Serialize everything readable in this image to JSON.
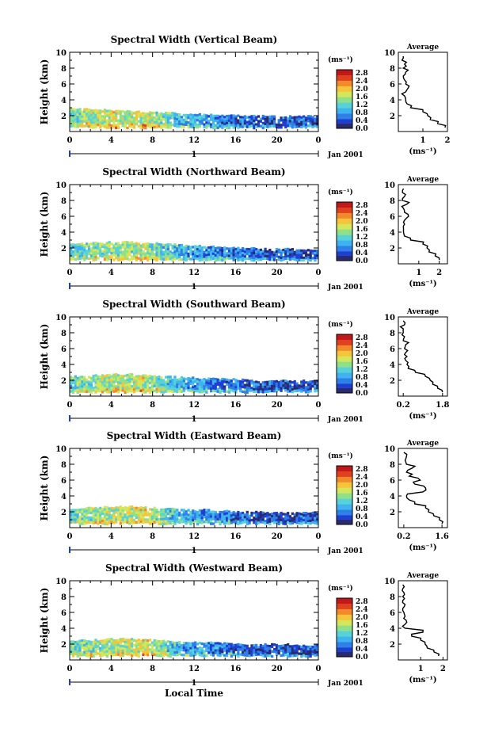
{
  "figure": {
    "xlabel": "Local Time",
    "date_label": "Jan 2001",
    "colorbar_unit": "(ms⁻¹)",
    "colorbar_ticks": [
      "2.8",
      "2.4",
      "2.0",
      "1.6",
      "1.2",
      "0.8",
      "0.4",
      "0.0"
    ],
    "colormap": [
      "#2a2a6e",
      "#1f3fd0",
      "#2f7fe8",
      "#3fb3f0",
      "#57d2d8",
      "#8ee08a",
      "#d4e65a",
      "#f5c43a",
      "#f08a2a",
      "#e0401e",
      "#c01818"
    ],
    "profile_xlabel": "(ms⁻¹)",
    "day_tick_label": "1"
  },
  "chart_data": [
    {
      "type": "heatmap",
      "title": "Spectral Width (Vertical Beam)",
      "xlabel": "",
      "ylabel": "Height (km)",
      "x_ticks": [
        "0",
        "4",
        "8",
        "12",
        "16",
        "20",
        "0"
      ],
      "y_ticks": [
        "2",
        "4",
        "6",
        "8",
        "10"
      ],
      "xlim": [
        0,
        24
      ],
      "ylim": [
        0,
        10
      ],
      "zlim": [
        0,
        3.0
      ],
      "top_km": [
        2.9,
        2.9,
        2.8,
        2.7,
        2.6,
        2.5,
        2.4,
        2.4,
        2.3,
        2.2,
        2.1,
        2.1,
        2.0,
        2.0,
        2.0,
        2.0,
        2.0,
        2.0
      ],
      "mean_width": [
        1.3,
        1.6,
        1.7,
        1.8,
        1.7,
        1.9,
        1.5,
        1.2,
        1.1,
        1.0,
        0.8,
        0.7,
        0.6,
        0.5,
        0.5,
        0.5,
        0.6,
        0.5
      ],
      "average_profile": {
        "title": "Average",
        "xlabel": "(ms⁻¹)",
        "x_ticks": [
          "1",
          "2"
        ],
        "xlim": [
          0,
          2
        ],
        "height_km": [
          0.5,
          1.0,
          1.5,
          2.0,
          2.5,
          3.0,
          3.5,
          4.0,
          4.5,
          5.0,
          5.5,
          6.0,
          6.5,
          7.0,
          7.5,
          8.0,
          8.5,
          9.0,
          9.5
        ],
        "width": [
          1.9,
          1.6,
          1.3,
          1.2,
          1.0,
          0.5,
          0.35,
          0.3,
          0.25,
          0.3,
          0.4,
          0.3,
          0.25,
          0.2,
          0.3,
          0.2,
          0.25,
          0.15,
          0.2
        ]
      }
    },
    {
      "type": "heatmap",
      "title": "Spectral Width (Northward Beam)",
      "xlabel": "",
      "ylabel": "Height (km)",
      "x_ticks": [
        "0",
        "4",
        "8",
        "12",
        "16",
        "20",
        "0"
      ],
      "y_ticks": [
        "2",
        "4",
        "6",
        "8",
        "10"
      ],
      "xlim": [
        0,
        24
      ],
      "ylim": [
        0,
        10
      ],
      "zlim": [
        0,
        3.0
      ],
      "top_km": [
        2.5,
        2.6,
        2.7,
        2.8,
        2.8,
        2.7,
        2.6,
        2.5,
        2.4,
        2.3,
        2.2,
        2.1,
        2.0,
        2.0,
        1.9,
        1.9,
        1.9,
        1.9
      ],
      "mean_width": [
        1.2,
        1.4,
        1.5,
        1.6,
        1.5,
        1.7,
        1.3,
        1.1,
        1.0,
        0.9,
        0.8,
        0.7,
        0.6,
        0.5,
        0.5,
        0.5,
        0.5,
        0.5
      ],
      "average_profile": {
        "title": "Average",
        "xlabel": "(ms⁻¹)",
        "x_ticks": [
          "1",
          "2"
        ],
        "xlim": [
          0,
          2.4
        ],
        "height_km": [
          0.5,
          1.0,
          1.5,
          2.0,
          2.5,
          3.0,
          3.5,
          4.0,
          4.5,
          5.0,
          5.5,
          6.0,
          6.5,
          7.0,
          7.5,
          8.0,
          8.5,
          9.0,
          9.5
        ],
        "width": [
          2.0,
          1.8,
          1.5,
          1.4,
          1.2,
          0.6,
          0.3,
          0.25,
          0.25,
          0.3,
          0.3,
          0.5,
          0.3,
          0.25,
          0.4,
          0.2,
          0.3,
          0.2,
          0.25
        ]
      }
    },
    {
      "type": "heatmap",
      "title": "Spectral Width (Southward Beam)",
      "xlabel": "",
      "ylabel": "Height (km)",
      "x_ticks": [
        "0",
        "4",
        "8",
        "12",
        "16",
        "20",
        "0"
      ],
      "y_ticks": [
        "2",
        "4",
        "6",
        "8",
        "10"
      ],
      "xlim": [
        0,
        24
      ],
      "ylim": [
        0,
        10
      ],
      "zlim": [
        0,
        3.0
      ],
      "top_km": [
        2.5,
        2.6,
        2.7,
        2.8,
        2.8,
        2.7,
        2.6,
        2.5,
        2.4,
        2.3,
        2.2,
        2.2,
        2.1,
        2.0,
        2.0,
        2.0,
        2.0,
        2.0
      ],
      "mean_width": [
        1.3,
        1.5,
        1.6,
        1.7,
        1.6,
        1.8,
        1.4,
        1.1,
        1.0,
        0.9,
        0.8,
        0.7,
        0.6,
        0.5,
        0.5,
        0.5,
        0.5,
        0.5
      ],
      "average_profile": {
        "title": "Average",
        "xlabel": "(ms⁻¹)",
        "x_ticks": [
          "0.2",
          "1.8"
        ],
        "xlim": [
          0,
          2.0
        ],
        "height_km": [
          0.5,
          1.0,
          1.5,
          2.0,
          2.5,
          3.0,
          3.5,
          4.0,
          4.5,
          5.0,
          5.5,
          6.0,
          6.5,
          7.0,
          7.5,
          8.0,
          8.5,
          9.0,
          9.5
        ],
        "width": [
          1.8,
          1.6,
          1.4,
          1.3,
          1.1,
          0.7,
          0.4,
          0.35,
          0.3,
          0.35,
          0.3,
          0.25,
          0.3,
          0.2,
          0.25,
          0.2,
          0.2,
          0.25,
          0.2
        ]
      }
    },
    {
      "type": "heatmap",
      "title": "Spectral Width (Eastward Beam)",
      "xlabel": "",
      "ylabel": "Height (km)",
      "x_ticks": [
        "0",
        "4",
        "8",
        "12",
        "16",
        "20",
        "0"
      ],
      "y_ticks": [
        "2",
        "4",
        "6",
        "8",
        "10"
      ],
      "xlim": [
        0,
        24
      ],
      "ylim": [
        0,
        10
      ],
      "zlim": [
        0,
        3.0
      ],
      "top_km": [
        2.4,
        2.5,
        2.6,
        2.7,
        2.7,
        2.6,
        2.5,
        2.4,
        2.3,
        2.3,
        2.2,
        2.1,
        2.0,
        2.0,
        1.9,
        1.9,
        1.9,
        1.9
      ],
      "mean_width": [
        1.3,
        1.5,
        1.6,
        1.7,
        1.7,
        1.9,
        1.5,
        1.2,
        1.0,
        0.9,
        0.8,
        0.7,
        0.6,
        0.5,
        0.5,
        0.4,
        0.5,
        0.5
      ],
      "average_profile": {
        "title": "Average",
        "xlabel": "(ms⁻¹)",
        "x_ticks": [
          "0.2",
          "1.6"
        ],
        "xlim": [
          0,
          1.8
        ],
        "height_km": [
          0.5,
          1.0,
          1.5,
          2.0,
          2.5,
          3.0,
          3.5,
          4.0,
          4.5,
          5.0,
          5.5,
          6.0,
          6.5,
          7.0,
          7.5,
          8.0,
          8.5,
          9.0,
          9.5
        ],
        "width": [
          1.6,
          1.5,
          1.3,
          1.1,
          1.0,
          0.6,
          0.4,
          0.3,
          0.9,
          1.0,
          0.6,
          0.8,
          0.4,
          0.3,
          0.5,
          0.3,
          0.25,
          0.3,
          0.2
        ]
      }
    },
    {
      "type": "heatmap",
      "title": "Spectral Width (Westward Beam)",
      "xlabel": "Local Time",
      "ylabel": "Height (km)",
      "x_ticks": [
        "0",
        "4",
        "8",
        "12",
        "16",
        "20",
        "0"
      ],
      "y_ticks": [
        "2",
        "4",
        "6",
        "8",
        "10"
      ],
      "xlim": [
        0,
        24
      ],
      "ylim": [
        0,
        10
      ],
      "zlim": [
        0,
        3.0
      ],
      "top_km": [
        2.4,
        2.5,
        2.6,
        2.7,
        2.7,
        2.6,
        2.5,
        2.4,
        2.3,
        2.3,
        2.2,
        2.1,
        2.0,
        2.0,
        2.0,
        2.0,
        1.9,
        1.9
      ],
      "mean_width": [
        1.3,
        1.5,
        1.6,
        1.7,
        1.7,
        1.9,
        1.5,
        1.2,
        1.0,
        0.9,
        0.8,
        0.7,
        0.6,
        0.5,
        0.5,
        0.5,
        0.5,
        0.5
      ],
      "average_profile": {
        "title": "Average",
        "xlabel": "(ms⁻¹)",
        "x_ticks": [
          "1",
          "2"
        ],
        "xlim": [
          0,
          2.2
        ],
        "height_km": [
          0.5,
          1.0,
          1.5,
          2.0,
          2.5,
          3.0,
          3.5,
          4.0,
          4.5,
          5.0,
          5.5,
          6.0,
          6.5,
          7.0,
          7.5,
          8.0,
          8.5,
          9.0,
          9.5
        ],
        "width": [
          1.8,
          1.6,
          1.3,
          1.2,
          1.0,
          0.6,
          1.1,
          0.3,
          0.3,
          0.35,
          0.3,
          0.25,
          0.2,
          0.3,
          0.2,
          0.2,
          0.25,
          0.2,
          0.2
        ]
      }
    }
  ]
}
